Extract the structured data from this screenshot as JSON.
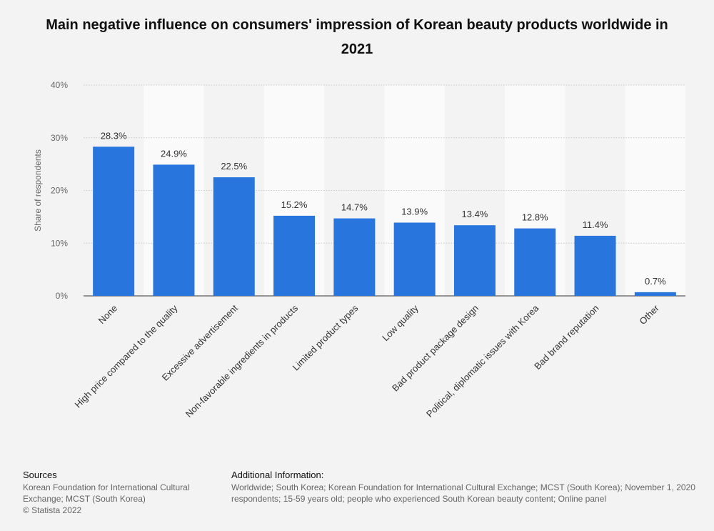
{
  "title": "Main negative influence on consumers' impression of Korean beauty products worldwide in 2021",
  "chart_data": {
    "type": "bar",
    "title": "Main negative influence on consumers' impression of Korean beauty products worldwide in 2021",
    "xlabel": "",
    "ylabel": "Share of respondents",
    "ylim": [
      0,
      40
    ],
    "yticks": [
      0,
      10,
      20,
      30,
      40
    ],
    "ytick_labels": [
      "0%",
      "10%",
      "20%",
      "30%",
      "40%"
    ],
    "categories": [
      "None",
      "High price compared to the quality",
      "Excessive advertisement",
      "Non-favorable ingredients in products",
      "Limited product types",
      "Low quality",
      "Bad product package design",
      "Political, diplomatic issues with Korea",
      "Bad brand reputation",
      "Other"
    ],
    "values": [
      28.3,
      24.9,
      22.5,
      15.2,
      14.7,
      13.9,
      13.4,
      12.8,
      11.4,
      0.7
    ],
    "value_labels": [
      "28.3%",
      "24.9%",
      "22.5%",
      "15.2%",
      "14.7%",
      "13.9%",
      "13.4%",
      "12.8%",
      "11.4%",
      "0.7%"
    ],
    "bar_color": "#2876dd",
    "grid": true
  },
  "footer": {
    "sources_heading": "Sources",
    "sources_text": "Korean Foundation for International Cultural Exchange; MCST (South Korea)",
    "copyright": "© Statista 2022",
    "info_heading": "Additional Information:",
    "info_text": "Worldwide; South Korea; Korean Foundation for International Cultural Exchange; MCST (South Korea); November 1, 2020 respondents; 15-59 years old; people who experienced South Korean beauty content; Online panel"
  }
}
